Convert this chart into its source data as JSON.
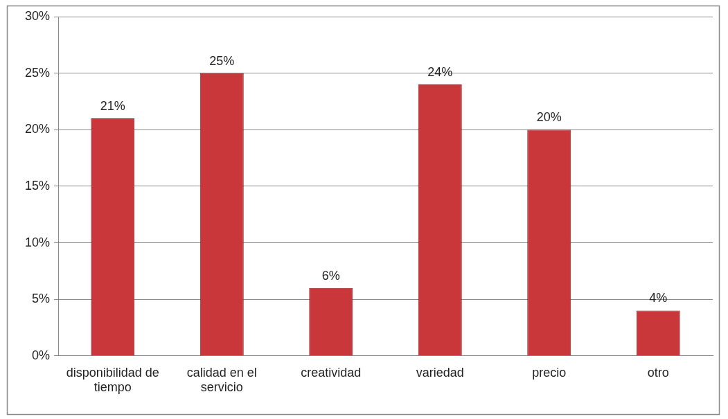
{
  "chart_data": {
    "type": "bar",
    "categories": [
      "disponibilidad de tiempo",
      "calidad en el servicio",
      "creatividad",
      "variedad",
      "precio",
      "otro"
    ],
    "values": [
      21,
      25,
      6,
      24,
      20,
      4
    ],
    "value_labels": [
      "21%",
      "25%",
      "6%",
      "24%",
      "20%",
      "4%"
    ],
    "color": "#c9373a",
    "ylim": [
      0,
      30
    ],
    "yticks": [
      {
        "value": 0,
        "label": "0%"
      },
      {
        "value": 5,
        "label": "5%"
      },
      {
        "value": 10,
        "label": "10%"
      },
      {
        "value": 15,
        "label": "15%"
      },
      {
        "value": 20,
        "label": "20%"
      },
      {
        "value": 25,
        "label": "25%"
      },
      {
        "value": 30,
        "label": "30%"
      }
    ],
    "grid": "y",
    "legend": false
  }
}
